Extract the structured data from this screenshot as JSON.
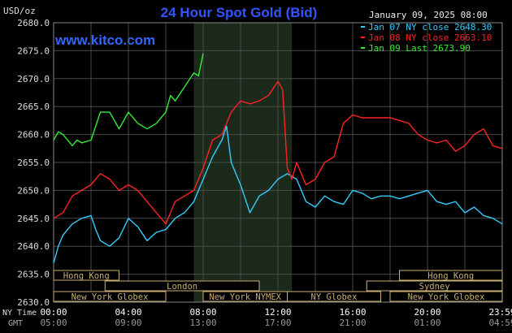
{
  "header": {
    "title": "24 Hour Spot Gold (Bid)",
    "site": "www.kitco.com",
    "date": "January 09, 2025 08:00",
    "unit": "USD/oz"
  },
  "legend": [
    {
      "label": "Jan 07 NY close 2648.30",
      "color": "#33ccff"
    },
    {
      "label": "Jan 08 NY close 2663.10",
      "color": "#ff2222"
    },
    {
      "label": "Jan 09 Last 2673.90",
      "color": "#33ee33"
    }
  ],
  "markets_row1": [
    {
      "label": "Hong Kong",
      "start": 0,
      "end": 3.5
    },
    {
      "label": "Hong Kong",
      "start": 18.5,
      "end": 24
    }
  ],
  "markets_row2": [
    {
      "label": "London",
      "start": 2.75,
      "end": 11
    },
    {
      "label": "Sydney",
      "start": 16.75,
      "end": 24
    }
  ],
  "markets_row3": [
    {
      "label": "New York Globex",
      "start": 0,
      "end": 6
    },
    {
      "label": "New York NYMEX",
      "start": 8,
      "end": 12.5
    },
    {
      "label": "NY Globex",
      "start": 12.5,
      "end": 17.5
    },
    {
      "label": "New York Globex",
      "start": 18,
      "end": 24
    }
  ],
  "time_rows": {
    "ny_label": "NY Time",
    "gmt_label": "GMT",
    "ny_ticks": [
      "00:00",
      "04:00",
      "08:00",
      "12:00",
      "16:00",
      "20:00",
      "23:59"
    ],
    "gmt_ticks": [
      "05:00",
      "09:00",
      "13:00",
      "17:00",
      "21:00",
      "01:00",
      "04:59"
    ]
  },
  "colors": {
    "background": "#000000",
    "title": "#3355ff",
    "site": "#3366ff",
    "grid": "#4a4a4a",
    "session_shade": "#1c2a1c",
    "market_box": "#c8b070",
    "jan07": "#33ccff",
    "jan08": "#ff2222",
    "jan09": "#33ee33"
  },
  "chart_data": {
    "type": "line",
    "x_unit": "hours (NY time)",
    "xlim": [
      0,
      24
    ],
    "ylim": [
      2630,
      2680
    ],
    "ylabel": "USD/oz",
    "yticks": [
      "2680.0",
      "2675.0",
      "2670.0",
      "2665.0",
      "2660.0",
      "2655.0",
      "2650.0",
      "2645.0",
      "2640.0",
      "2635.0",
      "2630.0"
    ],
    "grid": true,
    "legend_position": "top-right",
    "shaded_session": [
      7.5,
      12.75
    ],
    "series": [
      {
        "name": "Jan 07 NY close 2648.30",
        "color": "#33ccff",
        "x": [
          0,
          0.25,
          0.5,
          1,
          1.5,
          2,
          2.25,
          2.5,
          3,
          3.5,
          4,
          4.5,
          5,
          5.5,
          6,
          6.5,
          7,
          7.5,
          8,
          8.5,
          9,
          9.25,
          9.5,
          10,
          10.5,
          11,
          11.5,
          12,
          12.5,
          13,
          13.5,
          14,
          14.5,
          15,
          15.5,
          16,
          16.5,
          17,
          17.5,
          18,
          18.5,
          19,
          19.5,
          20,
          20.5,
          21,
          21.5,
          22,
          22.5,
          23,
          23.5,
          24
        ],
        "values": [
          2637.0,
          2640.0,
          2642.0,
          2644.0,
          2645.0,
          2645.5,
          2643.0,
          2641.0,
          2640.0,
          2641.5,
          2645.0,
          2643.5,
          2641.0,
          2642.5,
          2643.0,
          2645.0,
          2646.0,
          2648.0,
          2652.0,
          2656.0,
          2659.0,
          2661.5,
          2655.0,
          2651.0,
          2646.0,
          2649.0,
          2650.0,
          2652.0,
          2653.0,
          2652.0,
          2648.0,
          2647.0,
          2649.0,
          2648.0,
          2647.5,
          2650.0,
          2649.5,
          2648.5,
          2649.0,
          2649.0,
          2648.5,
          2649.0,
          2649.5,
          2650.0,
          2648.0,
          2647.5,
          2648.0,
          2646.0,
          2647.0,
          2645.5,
          2645.0,
          2644.0
        ]
      },
      {
        "name": "Jan 08 NY close 2663.10",
        "color": "#ff2222",
        "x": [
          0,
          0.5,
          1,
          1.5,
          2,
          2.5,
          3,
          3.5,
          4,
          4.5,
          5,
          5.5,
          6,
          6.5,
          7,
          7.5,
          8,
          8.5,
          9,
          9.5,
          10,
          10.5,
          11,
          11.5,
          12,
          12.25,
          12.5,
          12.75,
          13,
          13.5,
          14,
          14.5,
          15,
          15.5,
          16,
          16.5,
          17,
          17.5,
          18,
          18.5,
          19,
          19.5,
          20,
          20.5,
          21,
          21.5,
          22,
          22.5,
          23,
          23.5,
          24
        ],
        "values": [
          2645.0,
          2646.0,
          2649.0,
          2650.0,
          2651.0,
          2653.0,
          2652.0,
          2650.0,
          2651.0,
          2650.0,
          2648.0,
          2646.0,
          2644.0,
          2648.0,
          2649.0,
          2650.0,
          2654.0,
          2659.0,
          2660.0,
          2664.0,
          2666.0,
          2665.5,
          2666.0,
          2667.0,
          2669.5,
          2668.0,
          2654.0,
          2652.0,
          2655.0,
          2651.0,
          2652.0,
          2655.0,
          2656.0,
          2662.0,
          2663.5,
          2663.0,
          2663.0,
          2663.0,
          2663.0,
          2662.5,
          2662.0,
          2660.0,
          2659.0,
          2658.5,
          2659.0,
          2657.0,
          2658.0,
          2660.0,
          2661.0,
          2658.0,
          2657.5
        ]
      },
      {
        "name": "Jan 09 Last 2673.90",
        "color": "#33ee33",
        "x": [
          0,
          0.25,
          0.5,
          1,
          1.25,
          1.5,
          2,
          2.5,
          3,
          3.5,
          4,
          4.5,
          5,
          5.5,
          6,
          6.25,
          6.5,
          7,
          7.5,
          7.75,
          8
        ],
        "values": [
          2659.0,
          2660.5,
          2660.0,
          2658.0,
          2659.0,
          2658.5,
          2659.0,
          2664.0,
          2664.0,
          2661.0,
          2664.0,
          2662.0,
          2661.0,
          2662.0,
          2664.0,
          2667.0,
          2666.0,
          2668.5,
          2671.0,
          2670.5,
          2674.5
        ]
      }
    ]
  }
}
